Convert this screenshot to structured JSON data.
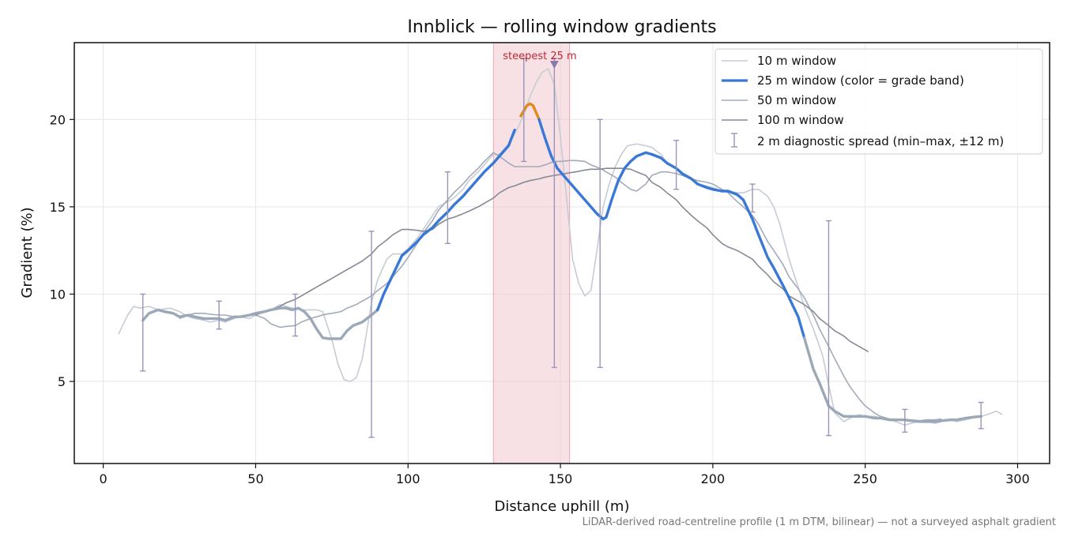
{
  "chart_data": {
    "type": "line",
    "title": "Innblick — rolling window gradients",
    "xlabel": "Distance uphill (m)",
    "ylabel": "Gradient (%)",
    "xlim": [
      -9.5,
      310.5
    ],
    "ylim": [
      0.3,
      24.4
    ],
    "xticks": [
      0,
      50,
      100,
      150,
      200,
      250,
      300
    ],
    "yticks": [
      5,
      10,
      15,
      20
    ],
    "grid": true,
    "legend_position": "top-right",
    "caption": "LiDAR-derived road-centreline profile (1 m DTM, bilinear) — not a surveyed asphalt gradient",
    "highlight": {
      "label": "steepest 25 m",
      "x_start": 128,
      "x_end": 153,
      "marker_x": 148,
      "color": "#f0c8cf"
    },
    "colors": {
      "w10": "#c6ccd5",
      "w50": "#a2abbb",
      "w100": "#858a97",
      "band_blue": "#3a78d6",
      "band_orange": "#e08a1e",
      "band_grey": "#9aa8b8",
      "errorbar": "#9a94b8",
      "marker": "#8a7ab0"
    },
    "series": [
      {
        "key": "w10",
        "name": "10 m window",
        "x": [
          5,
          8,
          10,
          12,
          15,
          18,
          22,
          25,
          28,
          30,
          33,
          35,
          38,
          40,
          43,
          45,
          48,
          50,
          53,
          55,
          58,
          60,
          62,
          65,
          68,
          70,
          72,
          75,
          77,
          79,
          81,
          83,
          85,
          88,
          90,
          93,
          95,
          98,
          100,
          103,
          105,
          108,
          110,
          113,
          115,
          118,
          120,
          123,
          125,
          128,
          130,
          133,
          136,
          138,
          140,
          142,
          144,
          146,
          148,
          150,
          152,
          154,
          156,
          158,
          160,
          162,
          164,
          166,
          168,
          170,
          172,
          175,
          178,
          180,
          183,
          185,
          188,
          190,
          193,
          195,
          198,
          200,
          203,
          205,
          208,
          210,
          213,
          215,
          218,
          220,
          222,
          225,
          228,
          230,
          233,
          236,
          238,
          240,
          243,
          245,
          248,
          250,
          253,
          255,
          258,
          260,
          263,
          265,
          268,
          270,
          273,
          275,
          278,
          280,
          283,
          285,
          288,
          290,
          293,
          295
        ],
        "y": [
          7.7,
          8.8,
          9.3,
          9.2,
          9.3,
          9.1,
          9.2,
          9.0,
          8.7,
          8.6,
          8.5,
          8.4,
          8.5,
          8.4,
          8.6,
          8.7,
          8.6,
          8.8,
          9.0,
          9.1,
          9.4,
          9.3,
          9.2,
          9.1,
          9.1,
          9.1,
          9.0,
          7.4,
          6.0,
          5.1,
          5.0,
          5.2,
          6.3,
          9.5,
          10.8,
          12.0,
          12.3,
          12.3,
          12.6,
          13.2,
          13.7,
          14.5,
          15.0,
          15.3,
          15.5,
          16.0,
          16.5,
          17.0,
          17.4,
          18.0,
          18.0,
          18.6,
          19.5,
          20.3,
          21.3,
          22.1,
          22.7,
          22.9,
          22.0,
          19.0,
          15.5,
          12.0,
          10.6,
          9.9,
          10.2,
          12.5,
          15.0,
          16.3,
          17.3,
          18.0,
          18.5,
          18.6,
          18.5,
          18.4,
          18.0,
          17.5,
          17.2,
          16.8,
          16.6,
          16.3,
          16.2,
          16.1,
          15.9,
          15.9,
          15.8,
          15.8,
          16.0,
          16.0,
          15.6,
          15.0,
          14.0,
          12.0,
          10.4,
          9.3,
          8.0,
          6.5,
          4.8,
          3.2,
          2.7,
          2.9,
          3.1,
          3.0,
          3.0,
          2.9,
          2.8,
          2.7,
          2.5,
          2.6,
          2.7,
          2.7,
          2.6,
          2.7,
          2.8,
          2.7,
          2.8,
          2.9,
          3.0,
          3.1,
          3.3,
          3.1
        ]
      },
      {
        "key": "w25",
        "name": "25 m window (color = grade band)",
        "x": [
          13,
          15,
          18,
          20,
          23,
          25,
          28,
          30,
          33,
          35,
          38,
          40,
          43,
          45,
          48,
          50,
          53,
          55,
          58,
          60,
          62,
          64,
          66,
          68,
          70,
          72,
          74,
          76,
          78,
          80,
          82,
          85,
          88,
          90,
          92,
          95,
          98,
          100,
          103,
          105,
          108,
          110,
          113,
          115,
          118,
          120,
          123,
          125,
          128,
          130,
          133,
          135,
          137,
          139,
          140,
          141,
          143,
          145,
          147,
          149,
          151,
          153,
          156,
          159,
          162,
          164,
          165,
          167,
          169,
          171,
          173,
          175,
          178,
          180,
          183,
          185,
          188,
          190,
          193,
          195,
          198,
          200,
          203,
          205,
          208,
          210,
          213,
          215,
          218,
          220,
          223,
          225,
          228,
          230,
          233,
          235,
          238,
          240,
          243,
          245,
          248,
          250,
          253,
          255,
          258,
          260,
          263,
          265,
          268,
          270,
          273,
          275,
          278,
          280,
          283,
          285,
          288
        ],
        "y": [
          8.5,
          8.9,
          9.1,
          9.0,
          8.9,
          8.7,
          8.8,
          8.7,
          8.6,
          8.6,
          8.6,
          8.5,
          8.7,
          8.7,
          8.8,
          8.9,
          9.0,
          9.1,
          9.2,
          9.2,
          9.1,
          9.2,
          9.0,
          8.6,
          8.0,
          7.5,
          7.45,
          7.45,
          7.45,
          7.9,
          8.2,
          8.4,
          8.8,
          9.1,
          10.0,
          11.1,
          12.2,
          12.5,
          13.0,
          13.4,
          13.8,
          14.2,
          14.7,
          15.1,
          15.6,
          16.0,
          16.6,
          17.0,
          17.5,
          17.9,
          18.5,
          19.4,
          20.2,
          20.8,
          20.9,
          20.8,
          20.0,
          18.9,
          17.9,
          17.2,
          16.8,
          16.4,
          15.8,
          15.2,
          14.6,
          14.3,
          14.4,
          15.5,
          16.5,
          17.2,
          17.6,
          17.9,
          18.1,
          18.0,
          17.8,
          17.5,
          17.2,
          16.9,
          16.6,
          16.3,
          16.1,
          16.0,
          15.9,
          15.9,
          15.7,
          15.4,
          14.3,
          13.4,
          12.1,
          11.5,
          10.5,
          9.8,
          8.7,
          7.5,
          5.7,
          4.9,
          3.6,
          3.3,
          3.0,
          3.0,
          3.0,
          3.0,
          2.9,
          2.9,
          2.8,
          2.8,
          2.8,
          2.75,
          2.7,
          2.7,
          2.7,
          2.75,
          2.8,
          2.8,
          2.9,
          2.95,
          3.0
        ],
        "bands": [
          {
            "from": 13,
            "to": 66,
            "color": "band_grey"
          },
          {
            "from": 66,
            "to": 90,
            "color": "band_grey"
          },
          {
            "from": 90,
            "to": 136,
            "color": "band_blue"
          },
          {
            "from": 136,
            "to": 143,
            "color": "band_orange"
          },
          {
            "from": 143,
            "to": 230,
            "color": "band_blue"
          },
          {
            "from": 230,
            "to": 288,
            "color": "band_grey"
          }
        ]
      },
      {
        "key": "w50",
        "name": "50 m window",
        "x": [
          25,
          28,
          30,
          33,
          35,
          38,
          40,
          43,
          45,
          48,
          50,
          53,
          55,
          58,
          60,
          63,
          65,
          68,
          70,
          73,
          75,
          78,
          80,
          83,
          85,
          88,
          90,
          93,
          95,
          98,
          100,
          103,
          105,
          108,
          110,
          113,
          115,
          118,
          120,
          123,
          125,
          128,
          130,
          133,
          135,
          138,
          140,
          143,
          145,
          148,
          150,
          153,
          155,
          158,
          160,
          163,
          165,
          168,
          170,
          173,
          175,
          178,
          180,
          183,
          185,
          188,
          190,
          193,
          195,
          198,
          200,
          203,
          205,
          208,
          210,
          213,
          215,
          218,
          220,
          223,
          225,
          228,
          230,
          233,
          235,
          238,
          240,
          243,
          245,
          248,
          250,
          253,
          255,
          258,
          260,
          263,
          265,
          268,
          270,
          273,
          275
        ],
        "y": [
          8.6,
          8.8,
          8.9,
          8.9,
          8.85,
          8.8,
          8.8,
          8.7,
          8.7,
          8.8,
          8.8,
          8.6,
          8.3,
          8.1,
          8.15,
          8.2,
          8.4,
          8.6,
          8.7,
          8.85,
          8.9,
          9.0,
          9.2,
          9.4,
          9.6,
          9.9,
          10.2,
          10.6,
          11.0,
          11.6,
          12.1,
          12.9,
          13.5,
          14.2,
          14.8,
          15.4,
          15.8,
          16.3,
          16.7,
          17.2,
          17.6,
          18.1,
          17.9,
          17.5,
          17.3,
          17.3,
          17.3,
          17.3,
          17.4,
          17.6,
          17.6,
          17.65,
          17.65,
          17.6,
          17.4,
          17.2,
          17.0,
          16.7,
          16.4,
          16.0,
          15.9,
          16.3,
          16.8,
          17.0,
          17.0,
          16.9,
          16.8,
          16.6,
          16.5,
          16.4,
          16.3,
          16.0,
          15.8,
          15.3,
          15.0,
          14.5,
          14.0,
          13.0,
          12.5,
          11.7,
          11.0,
          10.3,
          9.8,
          8.8,
          8.0,
          7.0,
          6.3,
          5.3,
          4.7,
          4.0,
          3.6,
          3.2,
          3.0,
          2.85,
          2.8,
          2.8,
          2.8,
          2.75,
          2.8,
          2.8,
          2.85
        ]
      },
      {
        "key": "w100",
        "name": "100 m window",
        "x": [
          50,
          53,
          55,
          58,
          60,
          63,
          65,
          68,
          70,
          73,
          75,
          78,
          80,
          83,
          85,
          88,
          90,
          93,
          95,
          98,
          100,
          103,
          105,
          108,
          110,
          113,
          115,
          118,
          120,
          123,
          125,
          128,
          130,
          133,
          135,
          138,
          140,
          143,
          145,
          148,
          150,
          153,
          155,
          158,
          160,
          163,
          165,
          168,
          170,
          173,
          175,
          178,
          180,
          183,
          185,
          188,
          190,
          193,
          195,
          198,
          200,
          203,
          205,
          208,
          210,
          213,
          215,
          218,
          220,
          223,
          225,
          228,
          230,
          233,
          235,
          238,
          240,
          243,
          245,
          248,
          250,
          251
        ],
        "y": [
          8.8,
          9.0,
          9.1,
          9.3,
          9.5,
          9.7,
          9.9,
          10.2,
          10.4,
          10.7,
          10.9,
          11.2,
          11.4,
          11.7,
          11.9,
          12.3,
          12.7,
          13.1,
          13.4,
          13.7,
          13.7,
          13.65,
          13.6,
          13.7,
          14.0,
          14.3,
          14.4,
          14.6,
          14.75,
          15.0,
          15.2,
          15.5,
          15.8,
          16.1,
          16.2,
          16.4,
          16.5,
          16.6,
          16.7,
          16.8,
          16.85,
          16.95,
          17.0,
          17.1,
          17.15,
          17.15,
          17.2,
          17.2,
          17.2,
          17.15,
          17.0,
          16.8,
          16.4,
          16.1,
          15.8,
          15.4,
          15.0,
          14.5,
          14.2,
          13.8,
          13.4,
          12.9,
          12.7,
          12.5,
          12.3,
          12.0,
          11.6,
          11.1,
          10.7,
          10.3,
          9.9,
          9.6,
          9.4,
          9.0,
          8.6,
          8.2,
          7.9,
          7.6,
          7.3,
          7.0,
          6.8,
          6.7
        ]
      }
    ],
    "errorbars": {
      "name": "2 m diagnostic spread (min–max, ±12 m)",
      "x": [
        13,
        38,
        63,
        88,
        113,
        138,
        148,
        163,
        188,
        213,
        238,
        263,
        288
      ],
      "low": [
        5.6,
        8.0,
        7.6,
        1.8,
        12.9,
        17.6,
        5.8,
        5.8,
        16.0,
        14.7,
        1.9,
        2.1,
        2.3
      ],
      "high": [
        10.0,
        9.6,
        10.0,
        13.6,
        17.0,
        23.5,
        23.5,
        20.0,
        18.8,
        16.3,
        14.2,
        3.4,
        3.8
      ]
    }
  }
}
